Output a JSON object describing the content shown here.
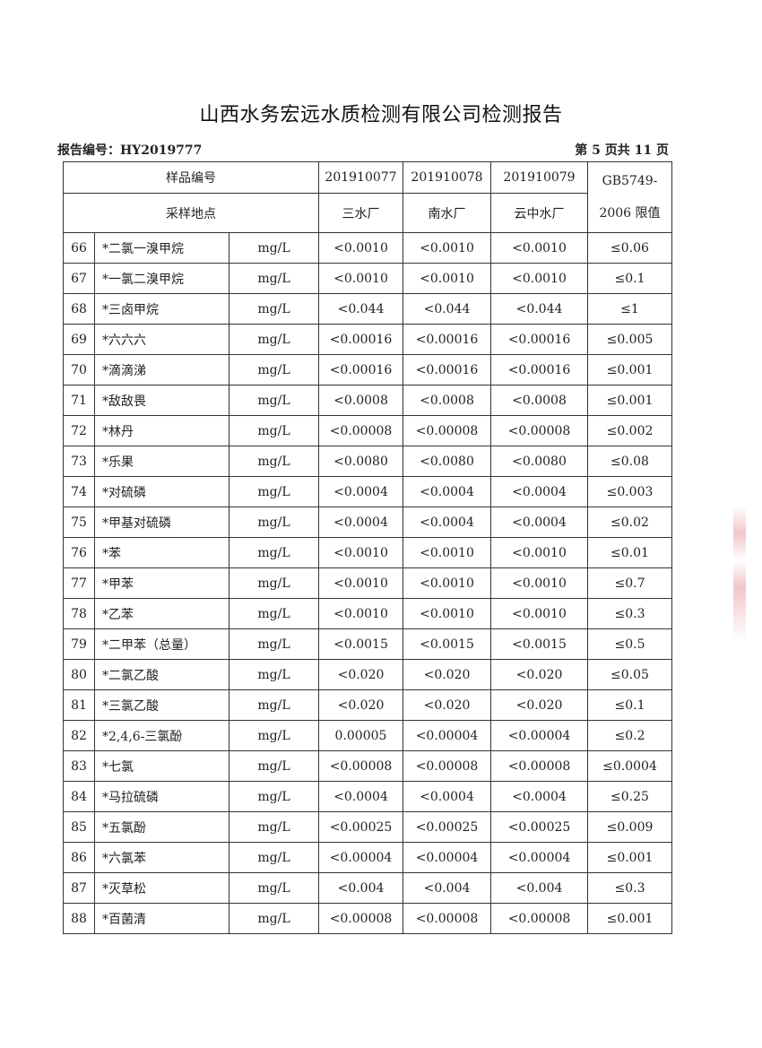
{
  "title": "山西水务宏远水质检测有限公司检测报告",
  "report_no": "报告编号：HY2019777",
  "page": "第 5 页共 11 页",
  "header": {
    "sample_no_label": "样品编号",
    "site_label": "采样地点",
    "samples": [
      "201910077",
      "201910078",
      "201910079"
    ],
    "sites": [
      "三水厂",
      "南水厂",
      "云中水厂"
    ],
    "limit_label_1": "GB5749-",
    "limit_label_2": "2006 限值"
  },
  "rows": [
    {
      "no": "66",
      "name": "*二氯一溴甲烷",
      "unit": "mg/L",
      "v": [
        "<0.0010",
        "<0.0010",
        "<0.0010"
      ],
      "limit": "≤0.06"
    },
    {
      "no": "67",
      "name": "*一氯二溴甲烷",
      "unit": "mg/L",
      "v": [
        "<0.0010",
        "<0.0010",
        "<0.0010"
      ],
      "limit": "≤0.1"
    },
    {
      "no": "68",
      "name": "*三卤甲烷",
      "unit": "mg/L",
      "v": [
        "<0.044",
        "<0.044",
        "<0.044"
      ],
      "limit": "≤1"
    },
    {
      "no": "69",
      "name": "*六六六",
      "unit": "mg/L",
      "v": [
        "<0.00016",
        "<0.00016",
        "<0.00016"
      ],
      "limit": "≤0.005"
    },
    {
      "no": "70",
      "name": "*滴滴涕",
      "unit": "mg/L",
      "v": [
        "<0.00016",
        "<0.00016",
        "<0.00016"
      ],
      "limit": "≤0.001"
    },
    {
      "no": "71",
      "name": "*敌敌畏",
      "unit": "mg/L",
      "v": [
        "<0.0008",
        "<0.0008",
        "<0.0008"
      ],
      "limit": "≤0.001"
    },
    {
      "no": "72",
      "name": "*林丹",
      "unit": "mg/L",
      "v": [
        "<0.00008",
        "<0.00008",
        "<0.00008"
      ],
      "limit": "≤0.002"
    },
    {
      "no": "73",
      "name": "*乐果",
      "unit": "mg/L",
      "v": [
        "<0.0080",
        "<0.0080",
        "<0.0080"
      ],
      "limit": "≤0.08"
    },
    {
      "no": "74",
      "name": "*对硫磷",
      "unit": "mg/L",
      "v": [
        "<0.0004",
        "<0.0004",
        "<0.0004"
      ],
      "limit": "≤0.003"
    },
    {
      "no": "75",
      "name": "*甲基对硫磷",
      "unit": "mg/L",
      "v": [
        "<0.0004",
        "<0.0004",
        "<0.0004"
      ],
      "limit": "≤0.02"
    },
    {
      "no": "76",
      "name": "*苯",
      "unit": "mg/L",
      "v": [
        "<0.0010",
        "<0.0010",
        "<0.0010"
      ],
      "limit": "≤0.01"
    },
    {
      "no": "77",
      "name": "*甲苯",
      "unit": "mg/L",
      "v": [
        "<0.0010",
        "<0.0010",
        "<0.0010"
      ],
      "limit": "≤0.7"
    },
    {
      "no": "78",
      "name": "*乙苯",
      "unit": "mg/L",
      "v": [
        "<0.0010",
        "<0.0010",
        "<0.0010"
      ],
      "limit": "≤0.3"
    },
    {
      "no": "79",
      "name": "*二甲苯（总量）",
      "unit": "mg/L",
      "v": [
        "<0.0015",
        "<0.0015",
        "<0.0015"
      ],
      "limit": "≤0.5"
    },
    {
      "no": "80",
      "name": "*二氯乙酸",
      "unit": "mg/L",
      "v": [
        "<0.020",
        "<0.020",
        "<0.020"
      ],
      "limit": "≤0.05"
    },
    {
      "no": "81",
      "name": "*三氯乙酸",
      "unit": "mg/L",
      "v": [
        "<0.020",
        "<0.020",
        "<0.020"
      ],
      "limit": "≤0.1"
    },
    {
      "no": "82",
      "name": "*2,4,6-三氯酚",
      "unit": "mg/L",
      "v": [
        "0.00005",
        "<0.00004",
        "<0.00004"
      ],
      "limit": "≤0.2"
    },
    {
      "no": "83",
      "name": "*七氯",
      "unit": "mg/L",
      "v": [
        "<0.00008",
        "<0.00008",
        "<0.00008"
      ],
      "limit": "≤0.0004"
    },
    {
      "no": "84",
      "name": "*马拉硫磷",
      "unit": "mg/L",
      "v": [
        "<0.0004",
        "<0.0004",
        "<0.0004"
      ],
      "limit": "≤0.25"
    },
    {
      "no": "85",
      "name": "*五氯酚",
      "unit": "mg/L",
      "v": [
        "<0.00025",
        "<0.00025",
        "<0.00025"
      ],
      "limit": "≤0.009"
    },
    {
      "no": "86",
      "name": "*六氯苯",
      "unit": "mg/L",
      "v": [
        "<0.00004",
        "<0.00004",
        "<0.00004"
      ],
      "limit": "≤0.001"
    },
    {
      "no": "87",
      "name": "*灭草松",
      "unit": "mg/L",
      "v": [
        "<0.004",
        "<0.004",
        "<0.004"
      ],
      "limit": "≤0.3"
    },
    {
      "no": "88",
      "name": "*百菌清",
      "unit": "mg/L",
      "v": [
        "<0.00008",
        "<0.00008",
        "<0.00008"
      ],
      "limit": "≤0.001"
    }
  ]
}
